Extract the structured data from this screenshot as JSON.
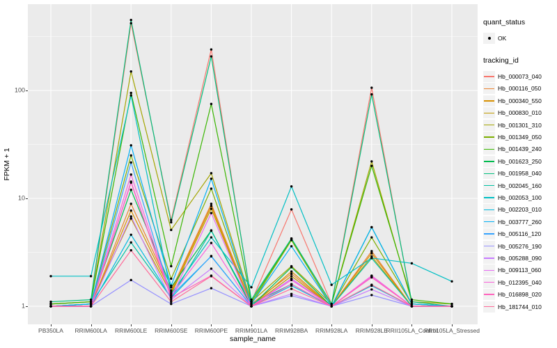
{
  "chart_data": {
    "type": "line",
    "title": "",
    "xlabel": "sample_name",
    "ylabel": "FPKM + 1",
    "y_scale": "log10",
    "y_tick_labels": [
      "1",
      "10",
      "100"
    ],
    "y_tick_values": [
      1,
      10,
      100
    ],
    "y_minor_values": [
      3.1623,
      31.623,
      316.23
    ],
    "ylim_log": [
      -0.05,
      2.8
    ],
    "grid": "white major and minor gridlines on gray panel",
    "legend_position": "right",
    "point_marker": "small black dot on every data point",
    "categories": [
      "PB350LA",
      "RRIM600LA",
      "RRIM600LE",
      "RRIM600SE",
      "RRIM600PE",
      "RRIM901LA",
      "RRIM928BA",
      "RRIM928LA",
      "RRIM928LE",
      "RRII105LA_Control",
      "RRII105LA_Stressed"
    ],
    "series": [
      {
        "name": "Hb_000073_040",
        "color": "#F8766D",
        "values": [
          1.05,
          1.1,
          420,
          6.3,
          240,
          1.1,
          7.9,
          1.05,
          106,
          1.05,
          1.0
        ]
      },
      {
        "name": "Hb_000116_050",
        "color": "#EA8331",
        "values": [
          1.0,
          1.0,
          8.9,
          1.4,
          8.9,
          1.05,
          2.0,
          1.0,
          3.24,
          1.0,
          1.0
        ]
      },
      {
        "name": "Hb_000340_550",
        "color": "#D89000",
        "values": [
          1.0,
          1.0,
          7.7,
          1.35,
          8.5,
          1.0,
          2.1,
          1.0,
          3.1,
          1.0,
          1.0
        ]
      },
      {
        "name": "Hb_000830_010",
        "color": "#C09B00",
        "values": [
          1.0,
          1.05,
          6.5,
          1.3,
          8.0,
          1.0,
          1.9,
          1.0,
          2.9,
          1.0,
          1.0
        ]
      },
      {
        "name": "Hb_001301_310",
        "color": "#A3A500",
        "values": [
          1.05,
          1.1,
          150,
          5.1,
          17.1,
          1.1,
          2.35,
          1.05,
          22,
          1.1,
          1.05
        ]
      },
      {
        "name": "Hb_001349_050",
        "color": "#7CAE00",
        "values": [
          1.0,
          1.05,
          25,
          1.8,
          12.3,
          1.05,
          4.1,
          1.0,
          4.35,
          1.05,
          1.0
        ]
      },
      {
        "name": "Hb_001439_240",
        "color": "#39B600",
        "values": [
          1.05,
          1.1,
          95,
          2.35,
          75,
          1.1,
          4.2,
          1.05,
          20,
          1.15,
          1.05
        ]
      },
      {
        "name": "Hb_001623_250",
        "color": "#00BB4E",
        "values": [
          1.0,
          1.05,
          12,
          1.5,
          5.05,
          1.0,
          2.3,
          1.0,
          5.4,
          1.05,
          1.0
        ]
      },
      {
        "name": "Hb_001958_040",
        "color": "#00BF7D",
        "values": [
          1.1,
          1.15,
          450,
          6.0,
          207,
          1.15,
          4.25,
          1.05,
          92,
          1.1,
          1.0
        ]
      },
      {
        "name": "Hb_002045_160",
        "color": "#00C1A3",
        "values": [
          1.0,
          1.05,
          3.9,
          1.2,
          5.0,
          1.05,
          1.6,
          1.0,
          2.79,
          1.0,
          1.0
        ]
      },
      {
        "name": "Hb_002053_100",
        "color": "#00BFC4",
        "values": [
          1.9,
          1.9,
          90,
          1.3,
          4.35,
          1.5,
          12.9,
          1.58,
          2.8,
          2.5,
          1.7
        ]
      },
      {
        "name": "Hb_002203_010",
        "color": "#00BAE0",
        "values": [
          1.0,
          1.0,
          4.6,
          1.2,
          2.92,
          1.0,
          1.55,
          1.0,
          1.55,
          1.0,
          1.0
        ]
      },
      {
        "name": "Hb_003777_260",
        "color": "#00B0F6",
        "values": [
          1.0,
          1.05,
          31,
          1.55,
          15.2,
          1.05,
          3.6,
          1.0,
          5.4,
          1.05,
          1.0
        ]
      },
      {
        "name": "Hb_005116_120",
        "color": "#35A2FF",
        "values": [
          1.0,
          1.0,
          21.5,
          1.25,
          2.9,
          1.0,
          1.8,
          1.0,
          1.9,
          1.0,
          1.0
        ]
      },
      {
        "name": "Hb_005276_190",
        "color": "#9590FF",
        "values": [
          1.0,
          1.0,
          1.75,
          1.05,
          1.47,
          1.0,
          1.25,
          1.0,
          1.27,
          1.0,
          1.0
        ]
      },
      {
        "name": "Hb_005288_090",
        "color": "#C77CFF",
        "values": [
          1.0,
          1.0,
          6.8,
          1.15,
          2.23,
          1.0,
          1.3,
          1.0,
          1.43,
          1.0,
          1.0
        ]
      },
      {
        "name": "Hb_009113_060",
        "color": "#E76BF3",
        "values": [
          1.0,
          1.0,
          14.3,
          1.2,
          7.3,
          1.0,
          1.8,
          1.0,
          1.9,
          1.0,
          1.0
        ]
      },
      {
        "name": "Hb_012395_040",
        "color": "#FA62DB",
        "values": [
          1.0,
          1.0,
          16.6,
          1.25,
          3.86,
          1.0,
          1.75,
          1.0,
          1.92,
          1.0,
          1.0
        ]
      },
      {
        "name": "Hb_016898_020",
        "color": "#FF62BC",
        "values": [
          1.0,
          1.0,
          14.0,
          1.2,
          1.92,
          1.0,
          1.6,
          1.0,
          1.85,
          1.0,
          1.0
        ]
      },
      {
        "name": "Hb_181744_010",
        "color": "#FF6A98",
        "values": [
          1.0,
          1.0,
          3.3,
          1.1,
          1.9,
          1.0,
          1.45,
          1.0,
          1.58,
          1.0,
          1.0
        ]
      }
    ]
  },
  "legend": {
    "quant_status": {
      "title": "quant_status",
      "items": [
        {
          "label": "OK",
          "marker": "black-point"
        }
      ]
    },
    "tracking_id": {
      "title": "tracking_id"
    }
  },
  "colors": {
    "panel_background": "#EBEBEB",
    "gridline": "#FFFFFF",
    "tick_text": "#4D4D4D",
    "axis_text": "#000000",
    "point": "#000000",
    "legend_key_background": "#F2F2F2"
  }
}
